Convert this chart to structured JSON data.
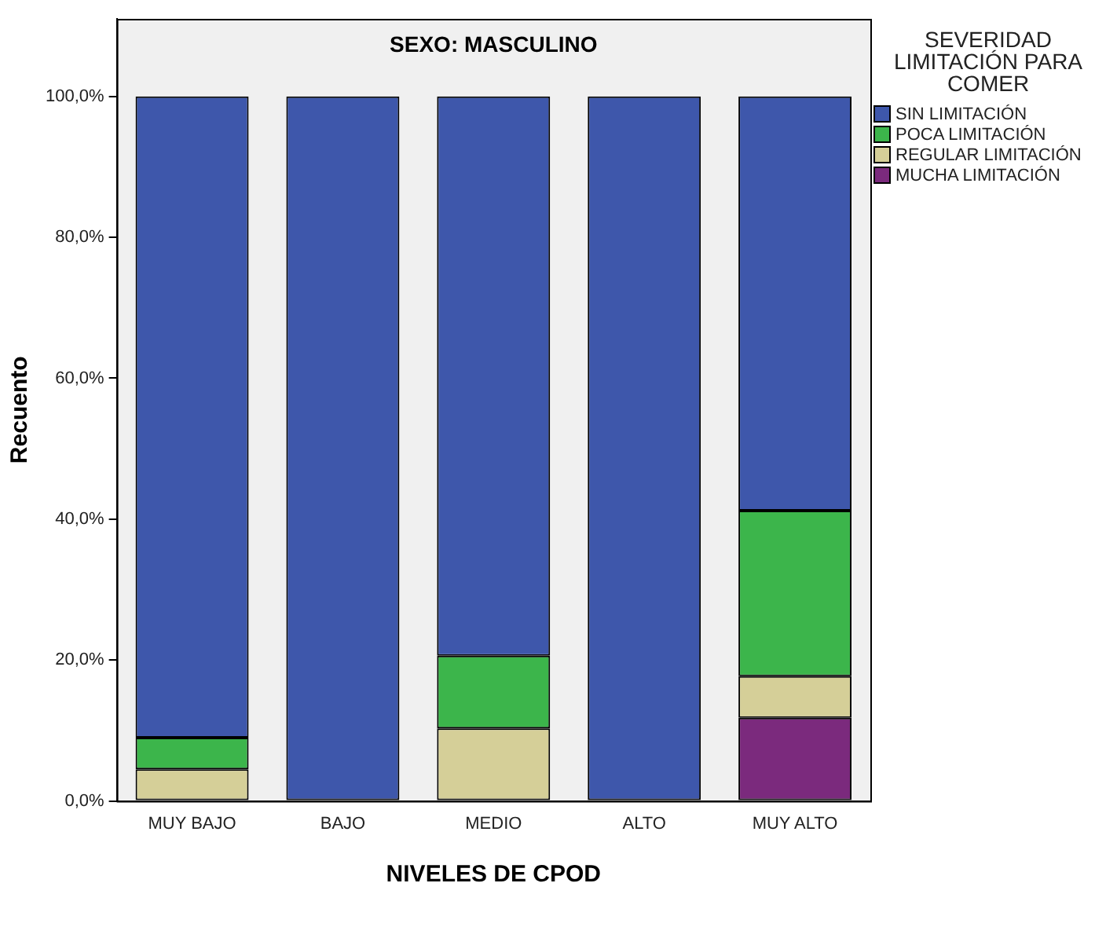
{
  "chart_data": {
    "type": "bar",
    "title": "SEXO: MASCULINO",
    "xlabel": "NIVELES DE CPOD",
    "ylabel": "Recuento",
    "legend_title": "SEVERIDAD LIMITACIÓN PARA COMER",
    "categories": [
      "MUY BAJO",
      "BAJO",
      "MEDIO",
      "ALTO",
      "MUY ALTO"
    ],
    "stacked": true,
    "series": [
      {
        "name": "MUCHA LIMITACIÓN",
        "color": "#7b2a7d",
        "values": [
          0,
          0,
          0,
          0,
          11.8
        ]
      },
      {
        "name": "REGULAR LIMITACIÓN",
        "color": "#d5cf98",
        "values": [
          4.5,
          0,
          10.3,
          0,
          5.9
        ]
      },
      {
        "name": "POCA LIMITACIÓN",
        "color": "#3cb54b",
        "values": [
          4.5,
          0,
          10.3,
          0,
          23.5
        ]
      },
      {
        "name": "SIN LIMITACIÓN",
        "color": "#3e57ab",
        "values": [
          91.0,
          100,
          79.4,
          100,
          58.8
        ]
      }
    ],
    "ylim": [
      0,
      111
    ],
    "yticks": [
      {
        "value": 0,
        "label": "0,0%"
      },
      {
        "value": 20,
        "label": "20,0%"
      },
      {
        "value": 40,
        "label": "40,0%"
      },
      {
        "value": 60,
        "label": "60,0%"
      },
      {
        "value": 80,
        "label": "80,0%"
      },
      {
        "value": 100,
        "label": "100,0%"
      }
    ],
    "grid": false,
    "legend": "top right"
  }
}
